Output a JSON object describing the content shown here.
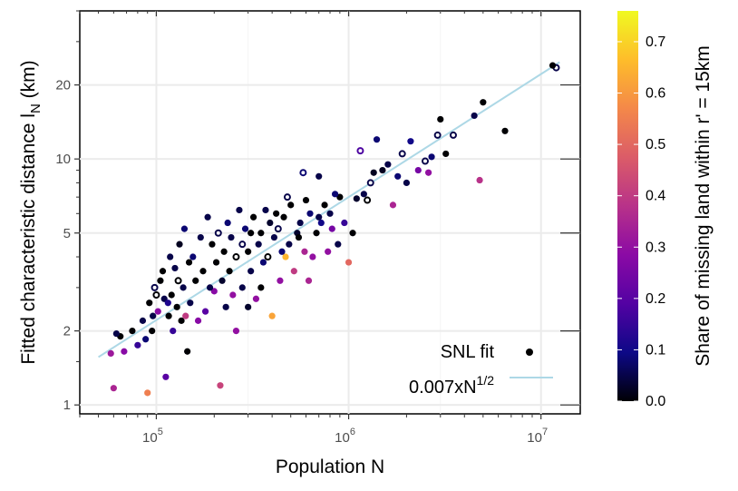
{
  "chart_data": {
    "type": "scatter",
    "xlabel": "Population N",
    "ylabel": "Fitted characteristic distance l",
    "ylabel_sub": "N",
    "ylabel_unit": " (km)",
    "xscale": "log",
    "yscale": "log",
    "xlim": [
      40000,
      16000000
    ],
    "ylim": [
      0.92,
      40
    ],
    "xticks": [
      {
        "value": 100000,
        "base": "10",
        "exp": "5"
      },
      {
        "value": 1000000,
        "base": "10",
        "exp": "6"
      },
      {
        "value": 10000000,
        "base": "10",
        "exp": "7"
      }
    ],
    "yticks": [
      {
        "value": 1,
        "label": "1"
      },
      {
        "value": 2,
        "label": "2"
      },
      {
        "value": 5,
        "label": "5"
      },
      {
        "value": 10,
        "label": "10"
      },
      {
        "value": 20,
        "label": "20"
      }
    ],
    "grid": true,
    "legend_position": "bottom-right",
    "legend": [
      {
        "label": "SNL fit",
        "symbol": "point"
      },
      {
        "label": "0.007xN",
        "sup": "1/2",
        "symbol": "line"
      }
    ],
    "fit_line": {
      "coef": 0.007,
      "exponent": 0.5,
      "x_range": [
        50000,
        12500000
      ],
      "color": "#add8e6"
    },
    "colorbar": {
      "title": "Share of missing land within r' = 15km",
      "range": [
        0.0,
        0.76
      ],
      "ticks": [
        "0.0",
        "0.1",
        "0.2",
        "0.3",
        "0.4",
        "0.5",
        "0.6",
        "0.7"
      ],
      "colors": [
        "#0d0887",
        "#5302a3",
        "#8b0aa5",
        "#b83289",
        "#db5c68",
        "#f48849",
        "#febd2a",
        "#f0f921"
      ],
      "low_color": "#000004"
    },
    "points": [
      [
        12000000,
        23.5,
        0.05,
        true
      ],
      [
        11500000,
        24,
        0.0,
        false
      ],
      [
        6500000,
        13,
        0.0,
        false
      ],
      [
        5000000,
        17,
        0.0,
        false
      ],
      [
        4800000,
        8.2,
        0.38,
        false
      ],
      [
        4500000,
        15,
        0.05,
        false
      ],
      [
        3500000,
        12.5,
        0.05,
        true
      ],
      [
        3000000,
        14.5,
        0.0,
        false
      ],
      [
        2900000,
        12.5,
        0.05,
        true
      ],
      [
        2700000,
        10.2,
        0.08,
        false
      ],
      [
        2600000,
        8.8,
        0.3,
        false
      ],
      [
        2500000,
        9.8,
        0.05,
        true
      ],
      [
        2300000,
        9.0,
        0.25,
        false
      ],
      [
        2100000,
        11.8,
        0.1,
        false
      ],
      [
        1900000,
        10.5,
        0.05,
        true
      ],
      [
        1800000,
        8.5,
        0.08,
        false
      ],
      [
        1700000,
        6.5,
        0.35,
        false
      ],
      [
        1600000,
        9.5,
        0.05,
        false
      ],
      [
        1500000,
        9.0,
        0.02,
        false
      ],
      [
        1400000,
        12.0,
        0.08,
        false
      ],
      [
        1300000,
        8.0,
        0.05,
        true
      ],
      [
        1200000,
        7.2,
        0.05,
        false
      ],
      [
        1150000,
        10.8,
        0.18,
        true
      ],
      [
        1100000,
        6.9,
        0.03,
        false
      ],
      [
        1050000,
        5.0,
        0.0,
        false
      ],
      [
        1000000,
        3.8,
        0.5,
        false
      ],
      [
        950000,
        5.5,
        0.15,
        false
      ],
      [
        900000,
        7.0,
        0.0,
        false
      ],
      [
        880000,
        4.5,
        0.05,
        false
      ],
      [
        850000,
        7.2,
        0.08,
        false
      ],
      [
        820000,
        5.2,
        0.25,
        false
      ],
      [
        800000,
        6.0,
        0.05,
        false
      ],
      [
        780000,
        4.2,
        0.3,
        false
      ],
      [
        750000,
        6.5,
        0.0,
        false
      ],
      [
        720000,
        5.5,
        0.1,
        false
      ],
      [
        700000,
        8.5,
        0.05,
        false
      ],
      [
        680000,
        5.0,
        0.0,
        false
      ],
      [
        650000,
        4.0,
        0.3,
        false
      ],
      [
        630000,
        6.0,
        0.08,
        false
      ],
      [
        600000,
        6.8,
        0.0,
        false
      ],
      [
        590000,
        4.2,
        0.35,
        false
      ],
      [
        580000,
        8.8,
        0.08,
        true
      ],
      [
        560000,
        5.5,
        0.05,
        false
      ],
      [
        540000,
        5.0,
        0.03,
        false
      ],
      [
        520000,
        3.5,
        0.4,
        false
      ],
      [
        500000,
        6.5,
        0.0,
        false
      ],
      [
        490000,
        4.5,
        0.05,
        false
      ],
      [
        480000,
        7.0,
        0.05,
        true
      ],
      [
        470000,
        4.0,
        0.65,
        false
      ],
      [
        460000,
        5.8,
        0.0,
        false
      ],
      [
        450000,
        4.2,
        0.08,
        false
      ],
      [
        440000,
        3.2,
        0.3,
        false
      ],
      [
        430000,
        5.2,
        0.05,
        true
      ],
      [
        420000,
        6.0,
        0.0,
        false
      ],
      [
        410000,
        4.8,
        0.05,
        false
      ],
      [
        400000,
        2.3,
        0.62,
        false
      ],
      [
        390000,
        5.5,
        0.03,
        false
      ],
      [
        380000,
        4.0,
        0.0,
        true
      ],
      [
        370000,
        6.2,
        0.05,
        false
      ],
      [
        360000,
        3.8,
        0.08,
        false
      ],
      [
        350000,
        5.0,
        0.0,
        false
      ],
      [
        340000,
        4.5,
        0.05,
        false
      ],
      [
        330000,
        2.7,
        0.3,
        false
      ],
      [
        320000,
        5.8,
        0.0,
        false
      ],
      [
        310000,
        3.5,
        0.05,
        false
      ],
      [
        300000,
        4.2,
        0.0,
        false
      ],
      [
        290000,
        5.2,
        0.08,
        false
      ],
      [
        280000,
        3.0,
        0.05,
        false
      ],
      [
        270000,
        6.2,
        0.05,
        false
      ],
      [
        260000,
        4.0,
        0.0,
        true
      ],
      [
        250000,
        2.8,
        0.3,
        false
      ],
      [
        245000,
        4.8,
        0.05,
        false
      ],
      [
        240000,
        3.5,
        0.0,
        false
      ],
      [
        235000,
        5.5,
        0.08,
        false
      ],
      [
        230000,
        2.5,
        0.05,
        false
      ],
      [
        225000,
        4.2,
        0.0,
        false
      ],
      [
        220000,
        3.2,
        0.03,
        false
      ],
      [
        215000,
        1.2,
        0.42,
        false
      ],
      [
        210000,
        5.0,
        0.05,
        true
      ],
      [
        205000,
        3.8,
        0.0,
        false
      ],
      [
        200000,
        2.9,
        0.28,
        false
      ],
      [
        195000,
        4.5,
        0.0,
        false
      ],
      [
        190000,
        3.0,
        0.05,
        false
      ],
      [
        185000,
        5.8,
        0.05,
        false
      ],
      [
        180000,
        2.4,
        0.2,
        false
      ],
      [
        175000,
        3.5,
        0.0,
        false
      ],
      [
        170000,
        4.8,
        0.05,
        false
      ],
      [
        165000,
        2.2,
        0.28,
        false
      ],
      [
        160000,
        3.2,
        0.0,
        false
      ],
      [
        155000,
        4.0,
        0.08,
        false
      ],
      [
        150000,
        2.6,
        0.05,
        false
      ],
      [
        148000,
        3.8,
        0.0,
        false
      ],
      [
        145000,
        1.65,
        0.0,
        false
      ],
      [
        140000,
        5.2,
        0.08,
        false
      ],
      [
        138000,
        3.0,
        0.05,
        false
      ],
      [
        135000,
        2.2,
        0.0,
        false
      ],
      [
        132000,
        4.5,
        0.02,
        false
      ],
      [
        130000,
        3.2,
        0.0,
        true
      ],
      [
        128000,
        2.5,
        0.0,
        false
      ],
      [
        125000,
        3.6,
        0.05,
        false
      ],
      [
        122000,
        2.0,
        0.15,
        false
      ],
      [
        120000,
        2.8,
        0.0,
        false
      ],
      [
        118000,
        4.0,
        0.05,
        false
      ],
      [
        116000,
        2.3,
        0.0,
        false
      ],
      [
        112000,
        1.3,
        0.2,
        false
      ],
      [
        110000,
        2.7,
        0.05,
        false
      ],
      [
        105000,
        3.2,
        0.0,
        false
      ],
      [
        102000,
        2.4,
        0.28,
        false
      ],
      [
        98000,
        3.0,
        0.05,
        true
      ],
      [
        95000,
        2.0,
        0.0,
        false
      ],
      [
        92000,
        2.6,
        0.0,
        false
      ],
      [
        90000,
        1.12,
        0.55,
        false
      ],
      [
        88000,
        1.85,
        0.08,
        false
      ],
      [
        85000,
        2.2,
        0.05,
        false
      ],
      [
        80000,
        1.75,
        0.15,
        false
      ],
      [
        75000,
        2.0,
        0.0,
        false
      ],
      [
        68000,
        1.65,
        0.28,
        false
      ],
      [
        65000,
        1.9,
        0.0,
        false
      ],
      [
        60000,
        1.17,
        0.35,
        false
      ],
      [
        58000,
        1.62,
        0.32,
        false
      ],
      [
        62000,
        1.95,
        0.05,
        false
      ],
      [
        142000,
        2.3,
        0.4,
        false
      ],
      [
        115000,
        2.6,
        0.12,
        false
      ],
      [
        108000,
        3.5,
        0.0,
        false
      ],
      [
        100000,
        2.8,
        0.0,
        true
      ],
      [
        96000,
        2.3,
        0.05,
        false
      ],
      [
        260000,
        2.0,
        0.3,
        false
      ],
      [
        300000,
        2.5,
        0.03,
        false
      ],
      [
        350000,
        3.0,
        0.0,
        false
      ],
      [
        280000,
        4.5,
        0.05,
        true
      ],
      [
        310000,
        5.0,
        0.0,
        false
      ],
      [
        550000,
        4.8,
        0.0,
        false
      ],
      [
        620000,
        3.2,
        0.35,
        false
      ],
      [
        700000,
        5.8,
        0.05,
        false
      ],
      [
        1250000,
        6.8,
        0.0,
        true
      ],
      [
        2000000,
        8.0,
        0.05,
        false
      ],
      [
        1350000,
        8.8,
        0.02,
        false
      ],
      [
        3200000,
        10.5,
        0.0,
        false
      ]
    ]
  }
}
